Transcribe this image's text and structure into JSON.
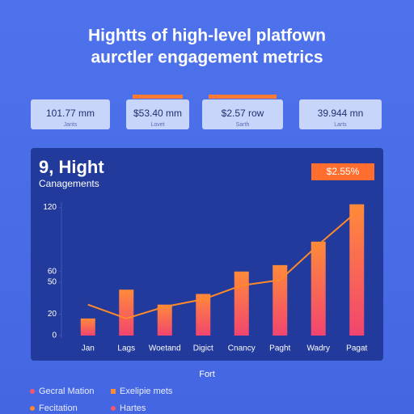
{
  "header": {
    "title_line1": "Hightts of high-level platfown",
    "title_line2": "aurctler engagement metrics"
  },
  "kpis": [
    {
      "value": "101.77 mm",
      "label": "Jants"
    },
    {
      "value": "$53.40 mm",
      "label": "Lovet"
    },
    {
      "value": "$2.57 row",
      "label": "Sarth"
    },
    {
      "value": "39.944 mn",
      "label": "Larts"
    }
  ],
  "chart_data": {
    "type": "bar",
    "title": "9, Hight",
    "subtitle": "Canagements",
    "badge": "$2.55%",
    "x_label": "Fort",
    "categories": [
      "Jan",
      "Lags",
      "Woetand",
      "Digict",
      "Cnancy",
      "Paght",
      "Wadry",
      "Pagat"
    ],
    "series": [
      {
        "name": "Gecral Mation",
        "type": "bar",
        "color": "#f5566a",
        "values": [
          16,
          43,
          29,
          39,
          60,
          66,
          88,
          123
        ]
      },
      {
        "name": "Exelipie mets",
        "type": "line",
        "color": "#ff8a2a",
        "values": [
          29,
          16,
          27,
          34,
          47,
          52,
          85,
          116
        ]
      }
    ],
    "notes": [
      "Fecitation",
      "Hartes"
    ],
    "ylim": [
      0,
      125
    ],
    "yticks": [
      0,
      20,
      50,
      60,
      120
    ],
    "grid": false
  }
}
